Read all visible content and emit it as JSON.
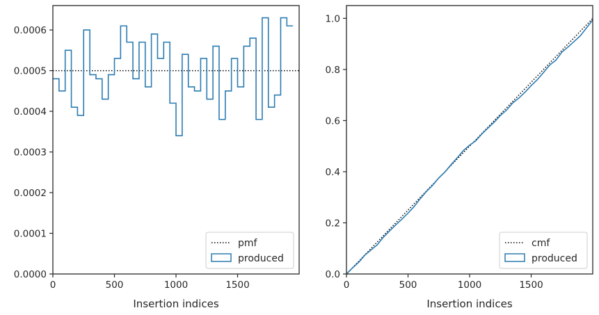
{
  "colors": {
    "histogram": "#2b7bb1",
    "reference": "#000000",
    "axes": "#262626"
  },
  "chart_data": [
    {
      "type": "histogram",
      "histtype": "step",
      "xlabel": "Insertion indices",
      "ylabel": "",
      "xlim": [
        0,
        2000
      ],
      "ylim": [
        0,
        0.00066
      ],
      "xticks": [
        0,
        500,
        1000,
        1500
      ],
      "xtick_labels": [
        "0",
        "500",
        "1000",
        "1500"
      ],
      "yticks": [
        0,
        0.0001,
        0.0002,
        0.0003,
        0.0004,
        0.0005,
        0.0006
      ],
      "ytick_labels": [
        "0.0000",
        "0.0001",
        "0.0002",
        "0.0003",
        "0.0004",
        "0.0005",
        "0.0006"
      ],
      "bin_width": 50,
      "bin_edges_start": 0,
      "series": [
        {
          "name": "produced",
          "style": "step",
          "values": [
            0.00048,
            0.00045,
            0.00055,
            0.00041,
            0.00039,
            0.0006,
            0.00049,
            0.00048,
            0.00043,
            0.00049,
            0.00053,
            0.00061,
            0.00057,
            0.00048,
            0.00057,
            0.00046,
            0.00059,
            0.00053,
            0.00057,
            0.00042,
            0.00034,
            0.00054,
            0.00046,
            0.00045,
            0.00053,
            0.00043,
            0.00056,
            0.00038,
            0.00045,
            0.00053,
            0.00046,
            0.00056,
            0.00058,
            0.00038,
            0.00063,
            0.00041,
            0.00044,
            0.00063,
            0.00061
          ]
        },
        {
          "name": "pmf",
          "style": "dotted",
          "value": 0.0005
        }
      ],
      "legend": {
        "position": "lower-right",
        "entries": [
          "pmf",
          "produced"
        ]
      }
    },
    {
      "type": "line",
      "xlabel": "Insertion indices",
      "ylabel": "",
      "xlim": [
        0,
        2000
      ],
      "ylim": [
        0,
        1.05
      ],
      "xticks": [
        0,
        500,
        1000,
        1500
      ],
      "xtick_labels": [
        "0",
        "500",
        "1000",
        "1500"
      ],
      "yticks": [
        0,
        0.2,
        0.4,
        0.6,
        0.8,
        1.0
      ],
      "ytick_labels": [
        "0.0",
        "0.2",
        "0.4",
        "0.6",
        "0.8",
        "1.0"
      ],
      "series": [
        {
          "name": "cmf",
          "style": "dotted",
          "x": [
            0,
            2000
          ],
          "y": [
            0,
            1.0
          ]
        },
        {
          "name": "produced",
          "style": "step",
          "x": [
            0,
            50,
            100,
            150,
            200,
            250,
            300,
            350,
            400,
            450,
            500,
            550,
            600,
            650,
            700,
            750,
            800,
            850,
            900,
            950,
            1000,
            1050,
            1100,
            1150,
            1200,
            1250,
            1300,
            1350,
            1400,
            1450,
            1500,
            1550,
            1600,
            1650,
            1700,
            1750,
            1800,
            1850,
            1900,
            1950,
            2000
          ],
          "y": [
            0,
            0.024,
            0.046,
            0.074,
            0.094,
            0.114,
            0.144,
            0.168,
            0.192,
            0.214,
            0.238,
            0.264,
            0.295,
            0.323,
            0.347,
            0.376,
            0.399,
            0.428,
            0.455,
            0.483,
            0.504,
            0.521,
            0.548,
            0.571,
            0.594,
            0.62,
            0.641,
            0.669,
            0.688,
            0.711,
            0.737,
            0.76,
            0.788,
            0.817,
            0.836,
            0.868,
            0.888,
            0.91,
            0.932,
            0.963,
            0.994
          ]
        }
      ],
      "legend": {
        "position": "lower-right",
        "entries": [
          "cmf",
          "produced"
        ]
      }
    }
  ]
}
